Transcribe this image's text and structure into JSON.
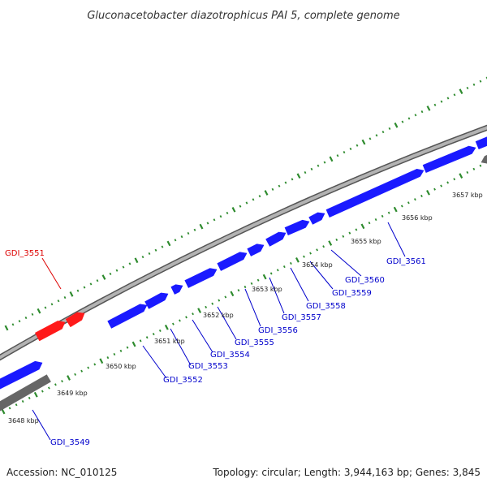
{
  "title": "Gluconacetobacter diazotrophicus PAI 5, complete genome",
  "footer": {
    "accession": "Accession: NC_010125",
    "summary": "Topology: circular; Length: 3,944,163 bp; Genes: 3,845"
  },
  "colors": {
    "forward_gene": "#1a1aff",
    "reverse_gene": "#ff1a1a",
    "forward_label": "#0000cc",
    "reverse_label": "#dd0000",
    "backbone": "#999999",
    "other_feature": "#666666",
    "ticks": "#2e8b2e"
  },
  "scale_labels": [
    "3648 kbp",
    "3649 kbp",
    "3650 kbp",
    "3651 kbp",
    "3652 kbp",
    "3653 kbp",
    "3654 kbp",
    "3655 kbp",
    "3656 kbp",
    "3657 kbp"
  ],
  "genes": [
    {
      "label": "GDI_3549",
      "strand": "forward"
    },
    {
      "label": "GDI_3551",
      "strand": "reverse"
    },
    {
      "label": "GDI_3552",
      "strand": "forward"
    },
    {
      "label": "GDI_3553",
      "strand": "forward"
    },
    {
      "label": "GDI_3554",
      "strand": "forward"
    },
    {
      "label": "GDI_3555",
      "strand": "forward"
    },
    {
      "label": "GDI_3556",
      "strand": "forward"
    },
    {
      "label": "GDI_3557",
      "strand": "forward"
    },
    {
      "label": "GDI_3558",
      "strand": "forward"
    },
    {
      "label": "GDI_3559",
      "strand": "forward"
    },
    {
      "label": "GDI_3560",
      "strand": "forward"
    },
    {
      "label": "GDI_3561",
      "strand": "forward"
    }
  ]
}
